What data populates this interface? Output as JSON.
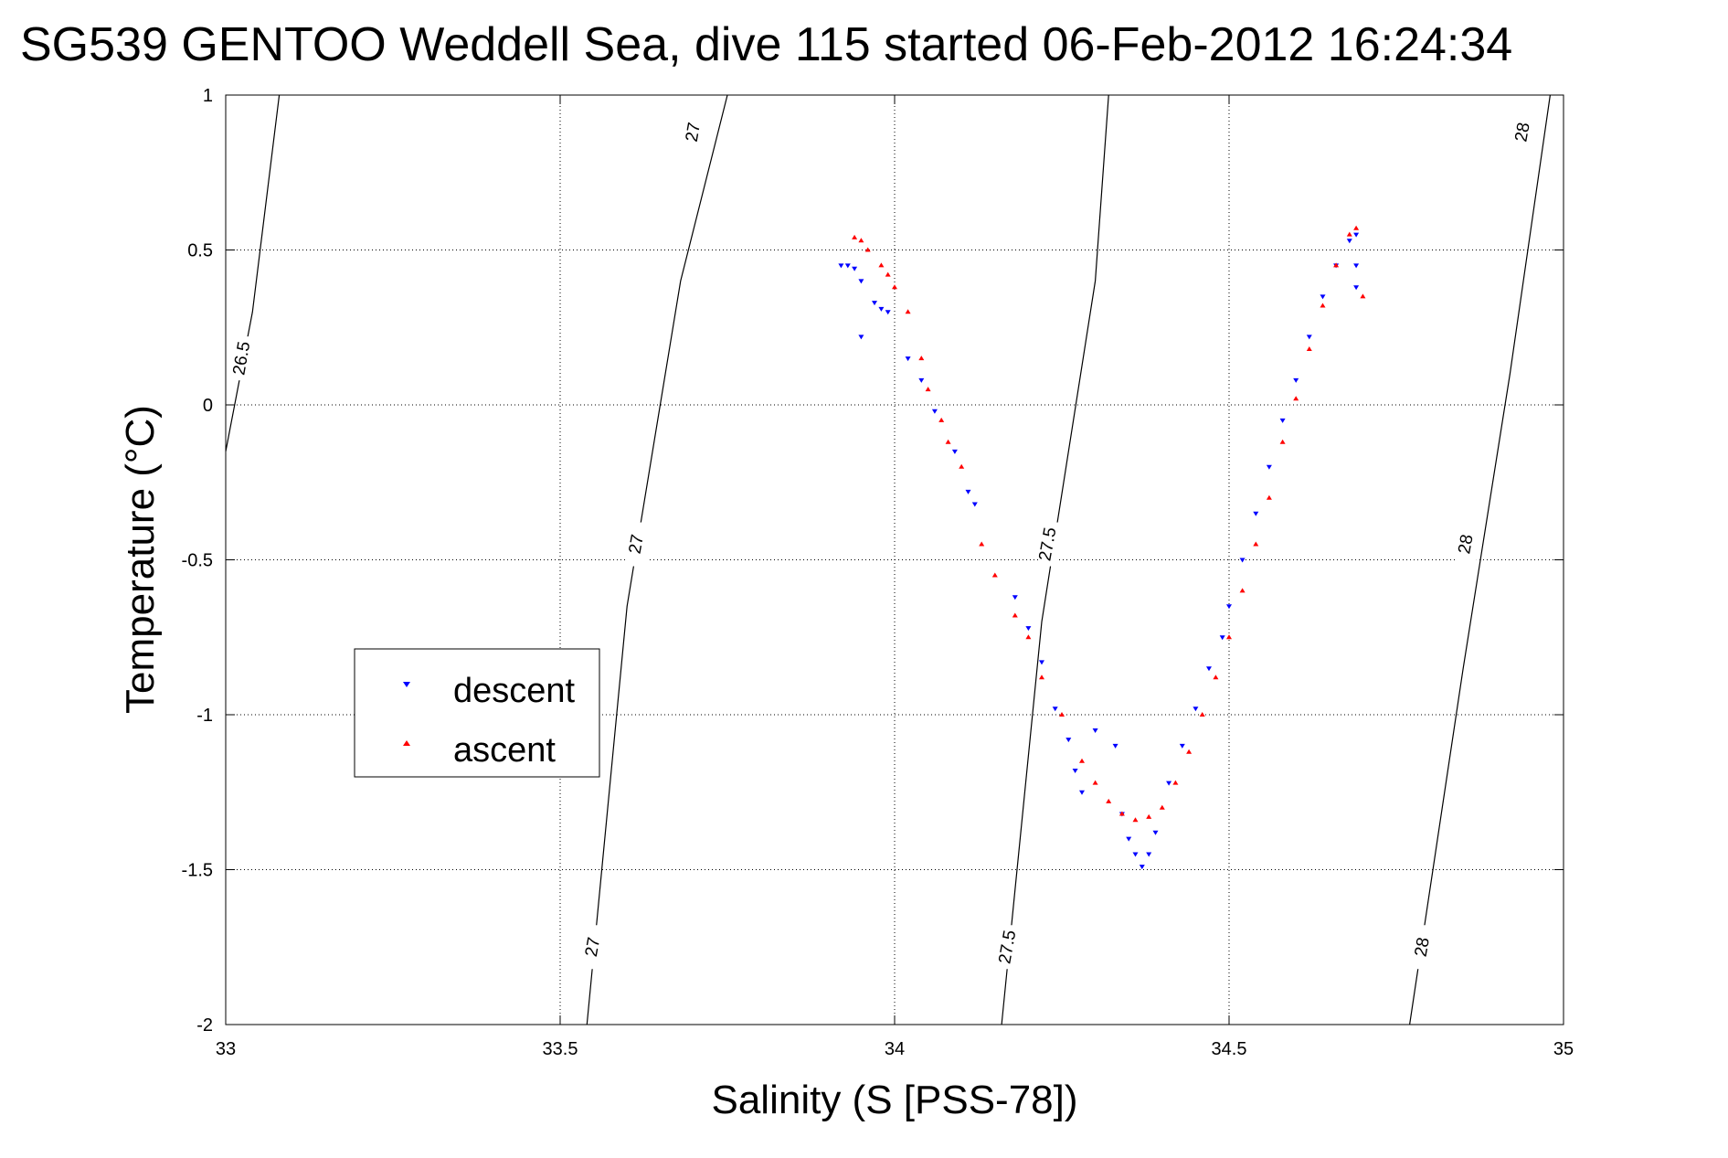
{
  "chart_data": {
    "type": "scatter",
    "title": "SG539 GENTOO Weddell Sea, dive 115 started 06-Feb-2012 16:24:34",
    "xlabel": "Salinity (S [PSS-78])",
    "ylabel": "Temperature (°C)",
    "xlim": [
      33,
      35
    ],
    "ylim": [
      -2,
      1
    ],
    "xticks": [
      33,
      33.5,
      34,
      34.5,
      35
    ],
    "yticks": [
      -2,
      -1.5,
      -1,
      -0.5,
      0,
      0.5,
      1
    ],
    "xtick_labels": [
      "33",
      "33.5",
      "34",
      "34.5",
      "35"
    ],
    "ytick_labels": [
      "-2",
      "-1.5",
      "-1",
      "-0.5",
      "0",
      "0.5",
      "1"
    ],
    "grid": true,
    "legend": {
      "position": "center-left",
      "entries": [
        {
          "label": "descent",
          "color": "#0000ff",
          "marker": "triangle-down"
        },
        {
          "label": "ascent",
          "color": "#ff0000",
          "marker": "triangle-up"
        }
      ]
    },
    "isopycnals": [
      {
        "sigma": 26.5,
        "label": "26.5",
        "points": [
          [
            33.0,
            -0.15
          ],
          [
            33.04,
            0.3
          ],
          [
            33.08,
            1.0
          ]
        ],
        "labels_at": [
          [
            33.025,
            0.15
          ]
        ]
      },
      {
        "sigma": 27.0,
        "label": "27",
        "points": [
          [
            33.54,
            -2.0
          ],
          [
            33.6,
            -0.65
          ],
          [
            33.68,
            0.4
          ],
          [
            33.75,
            1.0
          ]
        ],
        "labels_at": [
          [
            33.55,
            -1.75
          ],
          [
            33.615,
            -0.45
          ],
          [
            33.7,
            0.88
          ]
        ]
      },
      {
        "sigma": 27.5,
        "label": "27.5",
        "points": [
          [
            34.16,
            -2.0
          ],
          [
            34.22,
            -0.7
          ],
          [
            34.3,
            0.4
          ],
          [
            34.32,
            1.0
          ]
        ],
        "labels_at": [
          [
            34.17,
            -1.75
          ],
          [
            34.23,
            -0.45
          ]
        ]
      },
      {
        "sigma": 28.0,
        "label": "28",
        "points": [
          [
            34.77,
            -2.0
          ],
          [
            34.85,
            -0.85
          ],
          [
            34.92,
            0.1
          ],
          [
            34.98,
            1.0
          ]
        ],
        "labels_at": [
          [
            34.79,
            -1.75
          ],
          [
            34.855,
            -0.45
          ],
          [
            34.94,
            0.88
          ]
        ]
      }
    ],
    "series": [
      {
        "name": "descent",
        "color": "#0000ff",
        "marker": "triangle-down",
        "points": [
          [
            33.92,
            0.45
          ],
          [
            33.93,
            0.45
          ],
          [
            33.94,
            0.44
          ],
          [
            33.95,
            0.4
          ],
          [
            33.97,
            0.33
          ],
          [
            33.98,
            0.31
          ],
          [
            33.99,
            0.3
          ],
          [
            33.95,
            0.22
          ],
          [
            34.02,
            0.15
          ],
          [
            34.04,
            0.08
          ],
          [
            34.06,
            -0.02
          ],
          [
            34.09,
            -0.15
          ],
          [
            34.11,
            -0.28
          ],
          [
            34.12,
            -0.32
          ],
          [
            34.18,
            -0.62
          ],
          [
            34.2,
            -0.72
          ],
          [
            34.22,
            -0.83
          ],
          [
            34.24,
            -0.98
          ],
          [
            34.26,
            -1.08
          ],
          [
            34.27,
            -1.18
          ],
          [
            34.28,
            -1.25
          ],
          [
            34.3,
            -1.05
          ],
          [
            34.33,
            -1.1
          ],
          [
            34.34,
            -1.32
          ],
          [
            34.35,
            -1.4
          ],
          [
            34.36,
            -1.45
          ],
          [
            34.37,
            -1.49
          ],
          [
            34.38,
            -1.45
          ],
          [
            34.39,
            -1.38
          ],
          [
            34.41,
            -1.22
          ],
          [
            34.43,
            -1.1
          ],
          [
            34.45,
            -0.98
          ],
          [
            34.47,
            -0.85
          ],
          [
            34.49,
            -0.75
          ],
          [
            34.5,
            -0.65
          ],
          [
            34.52,
            -0.5
          ],
          [
            34.54,
            -0.35
          ],
          [
            34.56,
            -0.2
          ],
          [
            34.58,
            -0.05
          ],
          [
            34.6,
            0.08
          ],
          [
            34.62,
            0.22
          ],
          [
            34.64,
            0.35
          ],
          [
            34.66,
            0.45
          ],
          [
            34.68,
            0.53
          ],
          [
            34.69,
            0.55
          ],
          [
            34.69,
            0.45
          ],
          [
            34.69,
            0.38
          ]
        ]
      },
      {
        "name": "ascent",
        "color": "#ff0000",
        "marker": "triangle-up",
        "points": [
          [
            33.94,
            0.54
          ],
          [
            33.95,
            0.53
          ],
          [
            33.96,
            0.5
          ],
          [
            33.98,
            0.45
          ],
          [
            33.99,
            0.42
          ],
          [
            34.0,
            0.38
          ],
          [
            34.02,
            0.3
          ],
          [
            34.04,
            0.15
          ],
          [
            34.05,
            0.05
          ],
          [
            34.07,
            -0.05
          ],
          [
            34.08,
            -0.12
          ],
          [
            34.1,
            -0.2
          ],
          [
            34.13,
            -0.45
          ],
          [
            34.15,
            -0.55
          ],
          [
            34.18,
            -0.68
          ],
          [
            34.2,
            -0.75
          ],
          [
            34.22,
            -0.88
          ],
          [
            34.25,
            -1.0
          ],
          [
            34.28,
            -1.15
          ],
          [
            34.3,
            -1.22
          ],
          [
            34.32,
            -1.28
          ],
          [
            34.34,
            -1.32
          ],
          [
            34.36,
            -1.34
          ],
          [
            34.38,
            -1.33
          ],
          [
            34.4,
            -1.3
          ],
          [
            34.42,
            -1.22
          ],
          [
            34.44,
            -1.12
          ],
          [
            34.46,
            -1.0
          ],
          [
            34.48,
            -0.88
          ],
          [
            34.5,
            -0.75
          ],
          [
            34.52,
            -0.6
          ],
          [
            34.54,
            -0.45
          ],
          [
            34.56,
            -0.3
          ],
          [
            34.58,
            -0.12
          ],
          [
            34.6,
            0.02
          ],
          [
            34.62,
            0.18
          ],
          [
            34.64,
            0.32
          ],
          [
            34.66,
            0.45
          ],
          [
            34.68,
            0.55
          ],
          [
            34.69,
            0.57
          ],
          [
            34.7,
            0.35
          ]
        ]
      }
    ]
  }
}
